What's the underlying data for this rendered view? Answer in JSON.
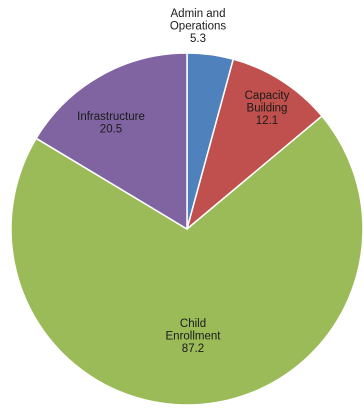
{
  "chart_data": {
    "type": "pie",
    "title": "",
    "slices": [
      {
        "label_lines": [
          "Admin and",
          "Operations"
        ],
        "value": 5.3,
        "value_label": "5.3",
        "color": "#4f81bd"
      },
      {
        "label_lines": [
          "Capacity",
          "Building"
        ],
        "value": 12.1,
        "value_label": "12.1",
        "color": "#c0504d"
      },
      {
        "label_lines": [
          "Child",
          "Enrollment"
        ],
        "value": 87.2,
        "value_label": "87.2",
        "color": "#9bbb59"
      },
      {
        "label_lines": [
          "Infrastructure"
        ],
        "value": 20.5,
        "value_label": "20.5",
        "color": "#8064a2"
      }
    ],
    "start_angle": "12 o'clock",
    "direction": "clockwise",
    "legend": "none",
    "data_labels": "category name and value"
  }
}
